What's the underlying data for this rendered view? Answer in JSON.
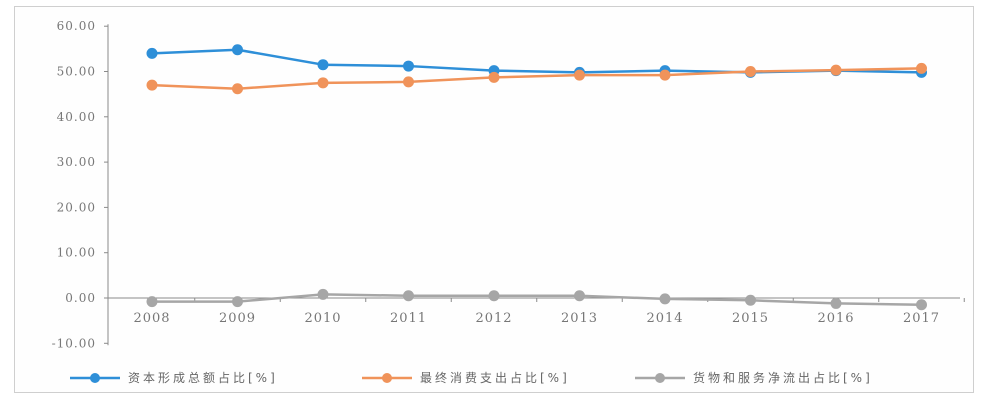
{
  "chart_data": {
    "type": "line",
    "title": "",
    "xlabel": "",
    "ylabel": "",
    "x": [
      "2008",
      "2009",
      "2010",
      "2011",
      "2012",
      "2013",
      "2014",
      "2015",
      "2016",
      "2017"
    ],
    "ylim": [
      -10,
      60
    ],
    "yticks": [
      "-10.00",
      "0.00",
      "10.00",
      "20.00",
      "30.00",
      "40.00",
      "50.00",
      "60.00"
    ],
    "grid": false,
    "legend_position": "bottom",
    "series": [
      {
        "name": "资本形成总额占比[%]",
        "color": "#2e8fd8",
        "values": [
          54.0,
          54.8,
          51.5,
          51.2,
          50.2,
          49.8,
          50.2,
          49.8,
          50.2,
          49.8
        ]
      },
      {
        "name": "最终消费支出占比[%]",
        "color": "#f0935a",
        "values": [
          47.0,
          46.2,
          47.5,
          47.7,
          48.7,
          49.2,
          49.2,
          50.0,
          50.3,
          50.7
        ]
      },
      {
        "name": "货物和服务净流出占比[%]",
        "color": "#a6a6a6",
        "values": [
          -0.8,
          -0.8,
          0.8,
          0.5,
          0.5,
          0.5,
          -0.2,
          -0.5,
          -1.2,
          -1.5
        ]
      }
    ]
  }
}
